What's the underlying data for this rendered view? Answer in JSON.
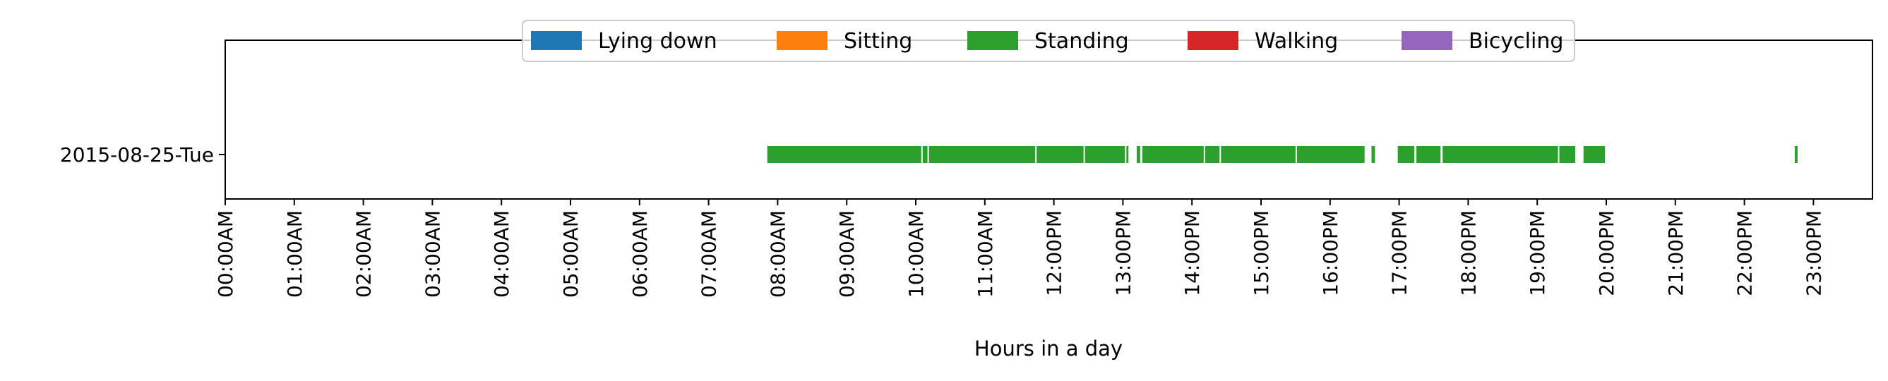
{
  "chart_data": {
    "type": "timeline",
    "title": "",
    "xlabel": "Hours in a day",
    "ylabel": "",
    "xlim": [
      0,
      24
    ],
    "x_ticks": [
      "00:00AM",
      "01:00AM",
      "02:00AM",
      "03:00AM",
      "04:00AM",
      "05:00AM",
      "06:00AM",
      "07:00AM",
      "08:00AM",
      "09:00AM",
      "10:00AM",
      "11:00AM",
      "12:00PM",
      "13:00PM",
      "14:00PM",
      "15:00PM",
      "16:00PM",
      "17:00PM",
      "18:00PM",
      "19:00PM",
      "20:00PM",
      "21:00PM",
      "22:00PM",
      "23:00PM"
    ],
    "categories": [
      "2015-08-25-Tue"
    ],
    "legend": {
      "placement": "top-center",
      "entries": [
        {
          "name": "Lying down",
          "color": "#1f77b4"
        },
        {
          "name": "Sitting",
          "color": "#ff7f0e"
        },
        {
          "name": "Standing",
          "color": "#2ca02c"
        },
        {
          "name": "Walking",
          "color": "#d62728"
        },
        {
          "name": "Bicycling",
          "color": "#9467bd"
        }
      ]
    },
    "grid": false,
    "series": [
      {
        "name": "Standing",
        "color": "#2ca02c",
        "day": "2015-08-25-Tue",
        "intervals": [
          [
            7.85,
            10.08
          ],
          [
            10.1,
            10.17
          ],
          [
            10.19,
            11.73
          ],
          [
            11.75,
            12.43
          ],
          [
            12.45,
            13.03
          ],
          [
            13.05,
            13.08
          ],
          [
            13.2,
            13.25
          ],
          [
            13.28,
            14.17
          ],
          [
            14.19,
            14.4
          ],
          [
            14.42,
            15.5
          ],
          [
            15.52,
            16.5
          ],
          [
            16.6,
            16.65
          ],
          [
            16.98,
            17.22
          ],
          [
            17.25,
            17.6
          ],
          [
            17.63,
            19.3
          ],
          [
            19.32,
            19.55
          ],
          [
            19.67,
            19.98
          ],
          [
            22.73,
            22.77
          ]
        ]
      }
    ]
  }
}
